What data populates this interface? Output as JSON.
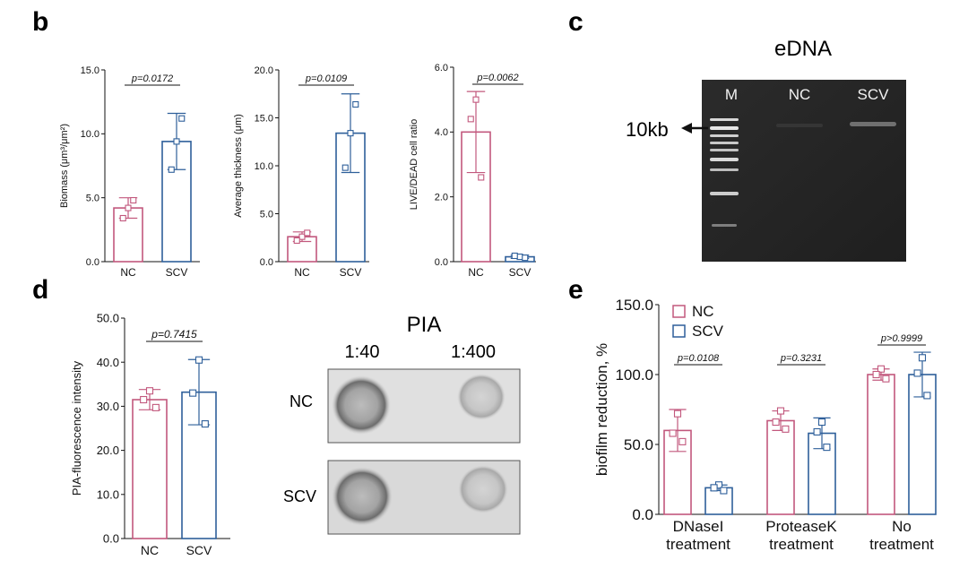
{
  "colors": {
    "nc": "#c2587d",
    "scv": "#2e5f9a",
    "axis": "#111111"
  },
  "panels": {
    "b": "b",
    "c": "c",
    "d": "d",
    "e": "e"
  },
  "chart_data": [
    {
      "id": "b1",
      "type": "bar",
      "categories": [
        "NC",
        "SCV"
      ],
      "values": [
        4.2,
        9.4
      ],
      "sd": [
        0.8,
        2.2
      ],
      "points": [
        [
          4.2,
          3.4,
          4.8
        ],
        [
          9.4,
          7.2,
          11.2
        ]
      ],
      "ylabel": "Biomass (μm³/μm²)",
      "ylim": [
        0,
        15
      ],
      "yticks": [
        0,
        5,
        10,
        15
      ],
      "tick_labels": [
        "0.0",
        "5.0",
        "10.0",
        "15.0"
      ],
      "pvalue": "p=0.0172",
      "grid": false
    },
    {
      "id": "b2",
      "type": "bar",
      "categories": [
        "NC",
        "SCV"
      ],
      "values": [
        2.6,
        13.4
      ],
      "sd": [
        0.5,
        4.1
      ],
      "points": [
        [
          2.6,
          2.2,
          3.0
        ],
        [
          13.4,
          9.8,
          16.4
        ]
      ],
      "ylabel": "Average thickness (μm)",
      "ylim": [
        0,
        20
      ],
      "yticks": [
        0,
        5,
        10,
        15,
        20
      ],
      "tick_labels": [
        "0.0",
        "5.0",
        "10.0",
        "15.0",
        "20.0"
      ],
      "pvalue": "p=0.0109",
      "grid": false
    },
    {
      "id": "b3",
      "type": "bar",
      "categories": [
        "NC",
        "SCV"
      ],
      "values": [
        4.0,
        0.15
      ],
      "sd": [
        1.25,
        0.05
      ],
      "points": [
        [
          5.0,
          4.4,
          2.6
        ],
        [
          0.15,
          0.18,
          0.12
        ]
      ],
      "ylabel": "LIVE/DEAD cell ratio",
      "ylim": [
        0,
        6
      ],
      "yticks": [
        0,
        2,
        4,
        6
      ],
      "tick_labels": [
        "0.0",
        "2.0",
        "4.0",
        "6.0"
      ],
      "pvalue": "p=0.0062",
      "grid": false
    },
    {
      "id": "d1",
      "type": "bar",
      "categories": [
        "NC",
        "SCV"
      ],
      "values": [
        31.5,
        33.2
      ],
      "sd": [
        2.3,
        7.4
      ],
      "points": [
        [
          33.5,
          31.5,
          29.7
        ],
        [
          40.5,
          33.0,
          26.0
        ]
      ],
      "ylabel": "PIA-fluorescence intensity",
      "ylim": [
        0,
        50
      ],
      "yticks": [
        0,
        10,
        20,
        30,
        40,
        50
      ],
      "tick_labels": [
        "0.0",
        "10.0",
        "20.0",
        "30.0",
        "40.0",
        "50.0"
      ],
      "pvalue": "p=0.7415",
      "grid": false
    },
    {
      "id": "e1",
      "type": "bar",
      "categories": [
        "DNaseI treatment",
        "ProteaseK treatment",
        "No treatment"
      ],
      "category_lines": [
        [
          "DNaseI",
          "treatment"
        ],
        [
          "ProteaseK",
          "treatment"
        ],
        [
          "No",
          "treatment"
        ]
      ],
      "series": [
        {
          "name": "NC",
          "values": [
            60,
            67,
            100
          ],
          "sd": [
            15,
            7,
            4
          ],
          "points": [
            [
              72,
              58,
              52
            ],
            [
              74,
              66,
              61
            ],
            [
              104,
              100,
              97
            ]
          ]
        },
        {
          "name": "SCV",
          "values": [
            19,
            58,
            100
          ],
          "sd": [
            2,
            11,
            16
          ],
          "points": [
            [
              21,
              19,
              17
            ],
            [
              66,
              59,
              48
            ],
            [
              112,
              101,
              85
            ]
          ]
        }
      ],
      "ylabel": "biofilm reduction, %",
      "ylim": [
        0,
        150
      ],
      "yticks": [
        0,
        50,
        100,
        150
      ],
      "tick_labels": [
        "0.0",
        "50.0",
        "100.0",
        "150.0"
      ],
      "pvalues": [
        "p=0.0108",
        "p=0.3231",
        "p>0.9999"
      ],
      "legend_position": "top-left",
      "grid": false
    }
  ],
  "gel": {
    "title": "eDNA",
    "lanes": [
      "M",
      "NC",
      "SCV"
    ],
    "marker_label": "10kb"
  },
  "dotblot": {
    "title": "PIA",
    "columns": [
      "1:40",
      "1:400"
    ],
    "rows": [
      "NC",
      "SCV"
    ]
  }
}
